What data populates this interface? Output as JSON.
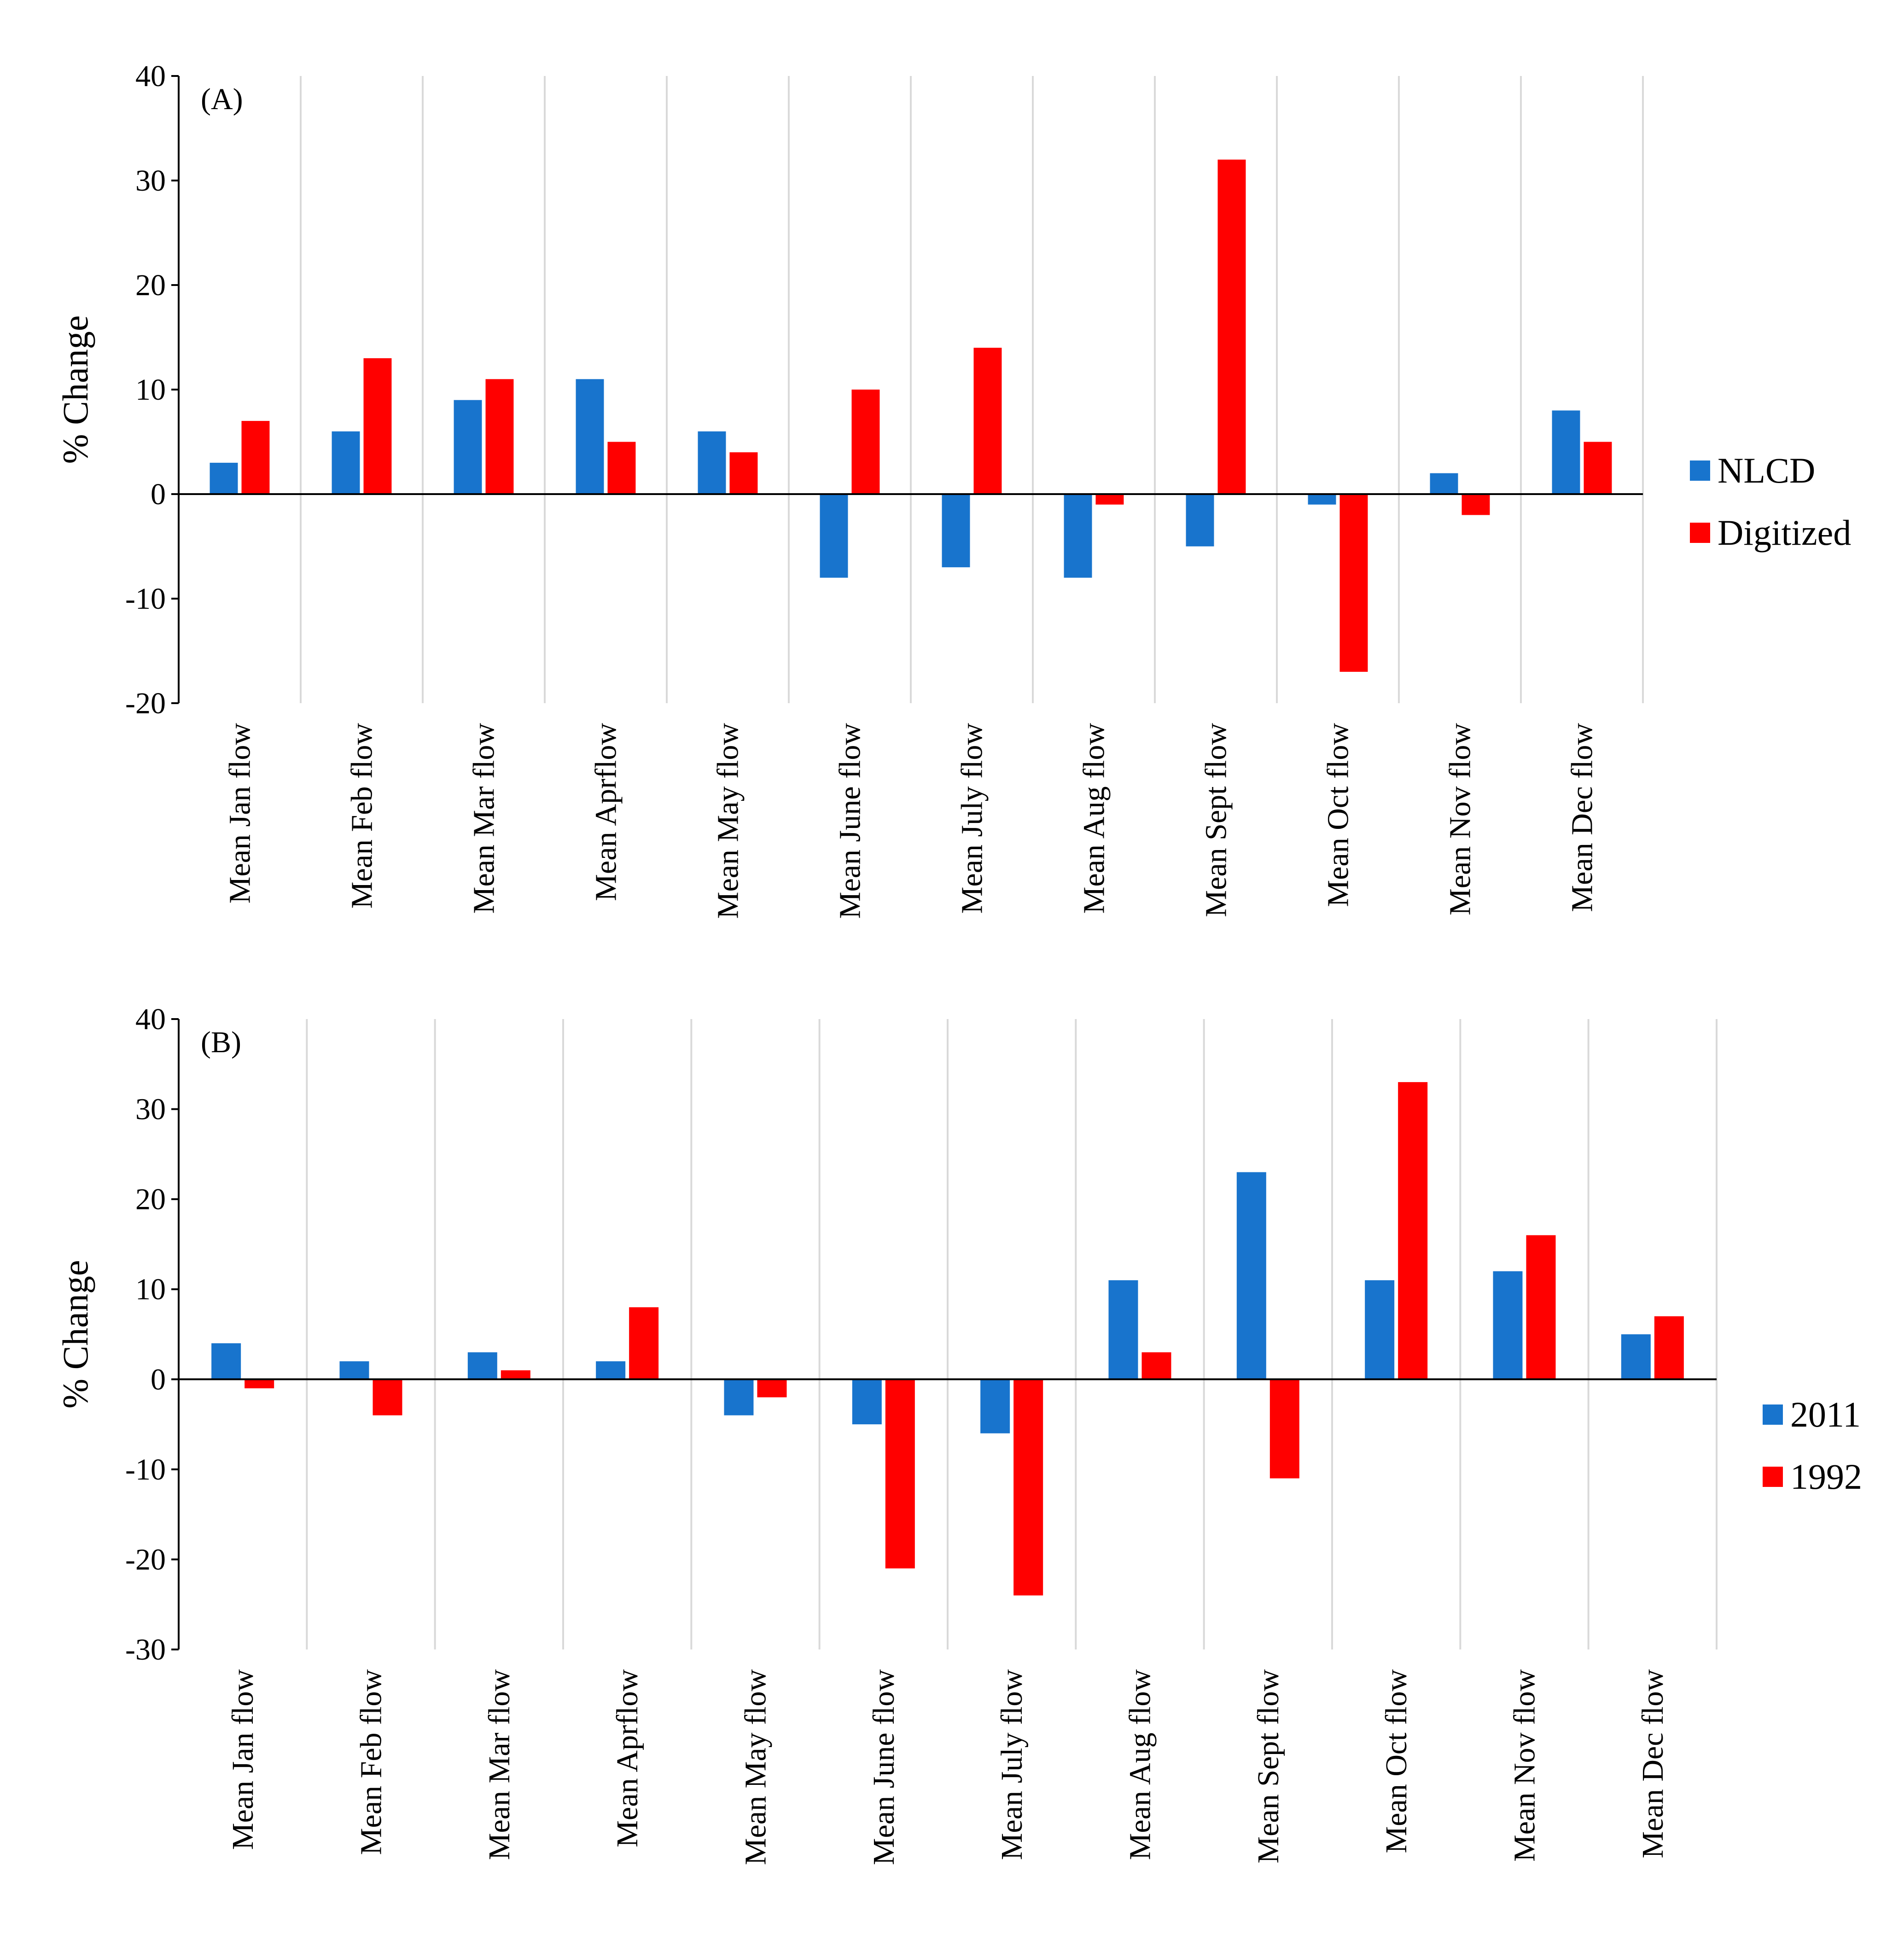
{
  "chart_data": [
    {
      "type": "bar",
      "panel_label": "(A)",
      "ylabel": "% Change",
      "ylim": [
        -20,
        40
      ],
      "yticks": [
        -20,
        -10,
        0,
        10,
        20,
        30,
        40
      ],
      "grid": "vertical separators",
      "legend_position": "right",
      "categories": [
        "Mean Jan flow",
        "Mean Feb flow",
        "Mean Mar flow",
        "Mean Aprflow",
        "Mean May flow",
        "Mean June flow",
        "Mean July flow",
        "Mean Aug flow",
        "Mean Sept flow",
        "Mean Oct flow",
        "Mean Nov flow",
        "Mean Dec flow"
      ],
      "series": [
        {
          "name": "NLCD",
          "color": "#1874cd",
          "values": [
            3,
            6,
            9,
            11,
            6,
            -8,
            -7,
            -8,
            -5,
            -1,
            2,
            8
          ]
        },
        {
          "name": "Digitized",
          "color": "#ff0000",
          "values": [
            7,
            13,
            11,
            5,
            4,
            10,
            14,
            -1,
            32,
            -17,
            -2,
            5
          ]
        }
      ]
    },
    {
      "type": "bar",
      "panel_label": "(B)",
      "ylabel": "% Change",
      "ylim": [
        -30,
        40
      ],
      "yticks": [
        -30,
        -20,
        -10,
        0,
        10,
        20,
        30,
        40
      ],
      "grid": "vertical separators",
      "legend_position": "right",
      "categories": [
        "Mean Jan flow",
        "Mean Feb flow",
        "Mean Mar flow",
        "Mean Aprflow",
        "Mean May flow",
        "Mean June flow",
        "Mean July flow",
        "Mean Aug flow",
        "Mean Sept flow",
        "Mean Oct flow",
        "Mean Nov flow",
        "Mean Dec flow"
      ],
      "series": [
        {
          "name": "2011",
          "color": "#1874cd",
          "values": [
            4,
            2,
            3,
            2,
            -4,
            -5,
            -6,
            11,
            23,
            11,
            12,
            5
          ]
        },
        {
          "name": "1992",
          "color": "#ff0000",
          "values": [
            -1,
            -4,
            1,
            8,
            -2,
            -21,
            -24,
            3,
            -11,
            33,
            16,
            7
          ]
        }
      ]
    }
  ]
}
